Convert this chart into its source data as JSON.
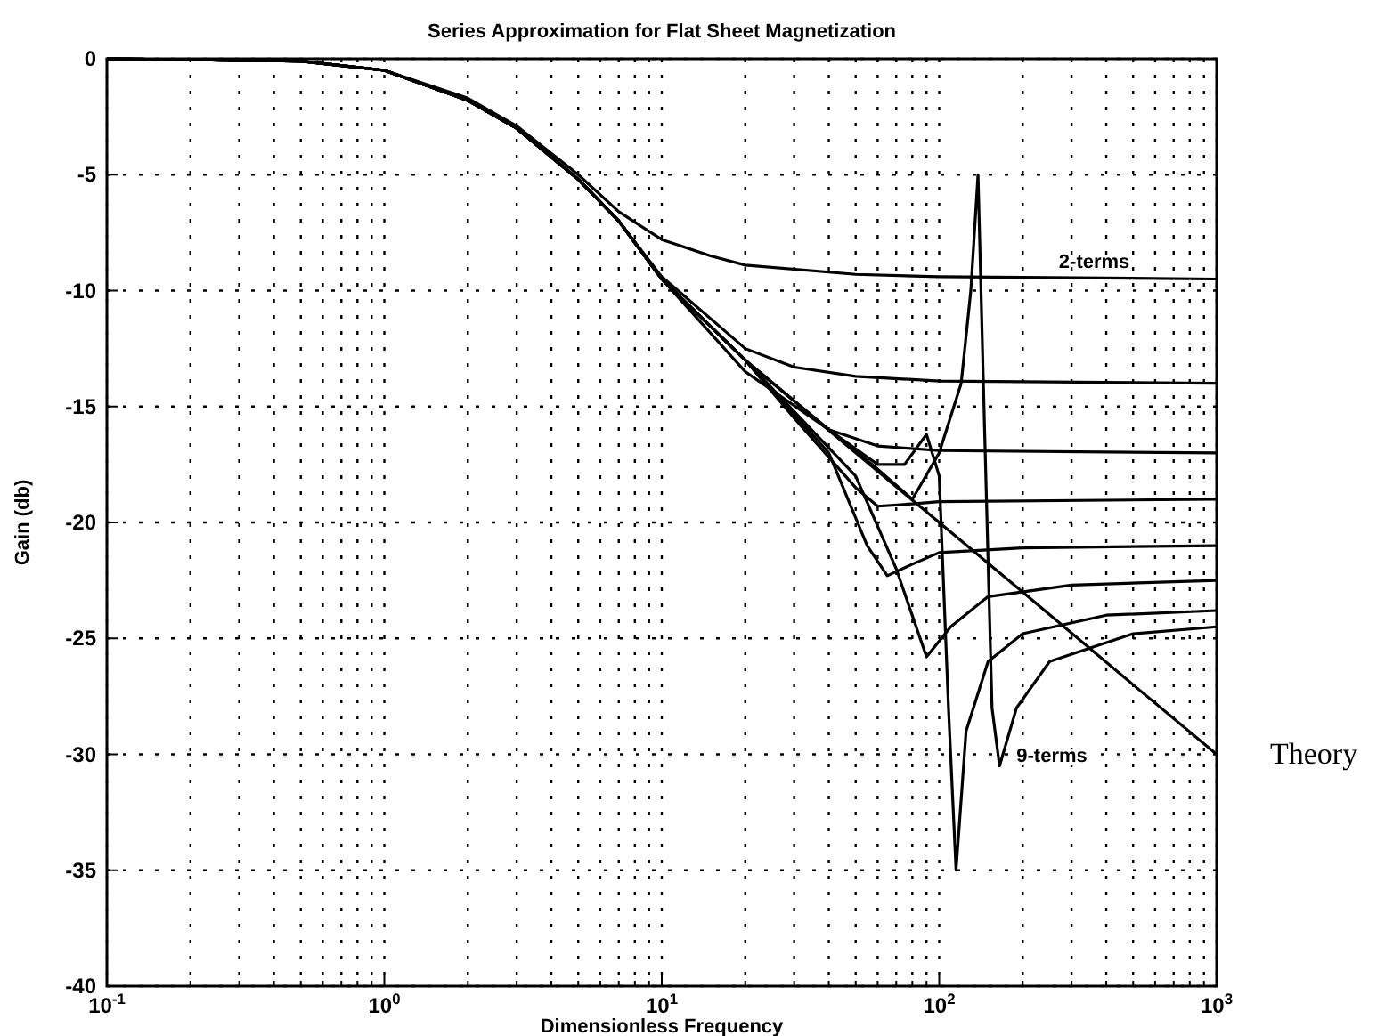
{
  "chart_data": {
    "type": "line",
    "title": "Series Approximation for Flat Sheet Magnetization",
    "xlabel": "Dimensionless Frequency",
    "ylabel": "Gain (db)",
    "log": "x",
    "xlim": [
      0.1,
      1000
    ],
    "xticks": [
      {
        "value": 0.1,
        "label": "10$^{-1}$"
      },
      {
        "value": 0.2,
        "label": null
      },
      {
        "value": 0.3,
        "label": null
      },
      {
        "value": 0.4,
        "label": null
      },
      {
        "value": 0.5,
        "label": null
      },
      {
        "value": 0.6,
        "label": null
      },
      {
        "value": 0.7,
        "label": null
      },
      {
        "value": 0.8,
        "label": null
      },
      {
        "value": 0.9,
        "label": null
      },
      {
        "value": 1,
        "label": "10$^{0}$"
      },
      {
        "value": 2,
        "label": null
      },
      {
        "value": 3,
        "label": null
      },
      {
        "value": 4,
        "label": null
      },
      {
        "value": 5,
        "label": null
      },
      {
        "value": 6,
        "label": null
      },
      {
        "value": 7,
        "label": null
      },
      {
        "value": 8,
        "label": null
      },
      {
        "value": 9,
        "label": null
      },
      {
        "value": 10,
        "label": "10$^{1}$"
      },
      {
        "value": 20,
        "label": null
      },
      {
        "value": 30,
        "label": null
      },
      {
        "value": 40,
        "label": null
      },
      {
        "value": 50,
        "label": null
      },
      {
        "value": 60,
        "label": null
      },
      {
        "value": 70,
        "label": null
      },
      {
        "value": 80,
        "label": null
      },
      {
        "value": 90,
        "label": null
      },
      {
        "value": 100,
        "label": "10$^{2}$"
      },
      {
        "value": 200,
        "label": null
      },
      {
        "value": 300,
        "label": null
      },
      {
        "value": 400,
        "label": null
      },
      {
        "value": 500,
        "label": null
      },
      {
        "value": 600,
        "label": null
      },
      {
        "value": 700,
        "label": null
      },
      {
        "value": 800,
        "label": null
      },
      {
        "value": 900,
        "label": null
      },
      {
        "value": 1000,
        "label": "10$^{3}$"
      }
    ],
    "ylim": [
      -40,
      0
    ],
    "yticks": [
      -40,
      -35,
      -30,
      -25,
      -20,
      -15,
      -10,
      -5,
      0
    ],
    "grid": true,
    "line_style": "solid",
    "series": [
      {
        "name": "Theory",
        "color": "#000000",
        "x": [
          0.1,
          0.5,
          1,
          2,
          3,
          5,
          7,
          10,
          20,
          50,
          100,
          200,
          500,
          1000
        ],
        "values": [
          0,
          -0.1,
          -0.5,
          -1.8,
          -3,
          -5.2,
          -7,
          -9.5,
          -13,
          -17,
          -20,
          -23,
          -27,
          -30
        ]
      },
      {
        "name": "2-terms",
        "color": "#000000",
        "x": [
          0.1,
          0.5,
          1,
          2,
          3,
          5,
          7,
          10,
          15,
          20,
          50,
          100,
          1000
        ],
        "values": [
          0,
          -0.1,
          -0.5,
          -1.7,
          -2.9,
          -5,
          -6.6,
          -7.8,
          -8.5,
          -8.9,
          -9.3,
          -9.4,
          -9.5
        ]
      },
      {
        "color": "#000000",
        "x": [
          0.1,
          0.5,
          1,
          2,
          3,
          5,
          7,
          10,
          20,
          30,
          50,
          100,
          1000
        ],
        "values": [
          0,
          -0.1,
          -0.5,
          -1.8,
          -3,
          -5.2,
          -7,
          -9.4,
          -12.5,
          -13.3,
          -13.7,
          -13.9,
          -14
        ]
      },
      {
        "color": "#000000",
        "x": [
          0.1,
          0.5,
          1,
          2,
          3,
          5,
          7,
          10,
          20,
          40,
          60,
          100,
          1000
        ],
        "values": [
          0,
          -0.1,
          -0.5,
          -1.8,
          -3,
          -5.2,
          -7,
          -9.5,
          -13.5,
          -16,
          -16.7,
          -16.9,
          -17
        ]
      },
      {
        "color": "#000000",
        "x": [
          0.1,
          0.5,
          1,
          2,
          3,
          5,
          7,
          10,
          20,
          30,
          50,
          60,
          80,
          100,
          1000
        ],
        "values": [
          0,
          -0.1,
          -0.5,
          -1.8,
          -3,
          -5.2,
          -7,
          -9.5,
          -13,
          -15.5,
          -18.5,
          -19.3,
          -19.2,
          -19.1,
          -19
        ]
      },
      {
        "color": "#000000",
        "x": [
          0.1,
          0.5,
          1,
          2,
          3,
          5,
          7,
          10,
          20,
          40,
          55,
          65,
          80,
          100,
          200,
          1000
        ],
        "values": [
          0,
          -0.1,
          -0.5,
          -1.8,
          -3,
          -5.2,
          -7,
          -9.5,
          -13,
          -17,
          -21,
          -22.3,
          -21.8,
          -21.3,
          -21.1,
          -21
        ]
      },
      {
        "color": "#000000",
        "x": [
          0.1,
          0.5,
          1,
          2,
          3,
          5,
          7,
          10,
          20,
          50,
          70,
          90,
          110,
          150,
          300,
          1000
        ],
        "values": [
          0,
          -0.1,
          -0.5,
          -1.8,
          -3,
          -5.2,
          -7,
          -9.5,
          -13,
          -18,
          -22,
          -25.8,
          -24.5,
          -23.2,
          -22.7,
          -22.5
        ]
      },
      {
        "color": "#000000",
        "x": [
          0.1,
          0.5,
          1,
          2,
          3,
          5,
          7,
          10,
          20,
          40,
          60,
          75,
          90,
          100,
          108,
          115,
          125,
          150,
          200,
          400,
          1000
        ],
        "values": [
          0,
          -0.1,
          -0.5,
          -1.8,
          -3,
          -5.2,
          -7,
          -9.5,
          -13,
          -16,
          -17.5,
          -17.5,
          -16.2,
          -18,
          -28,
          -35,
          -29,
          -26,
          -24.8,
          -24,
          -23.8
        ]
      },
      {
        "name": "9-terms",
        "color": "#000000",
        "x": [
          0.1,
          0.5,
          1,
          2,
          3,
          5,
          7,
          10,
          20,
          40,
          60,
          80,
          100,
          120,
          130,
          138,
          145,
          155,
          165,
          190,
          250,
          500,
          1000
        ],
        "values": [
          0,
          -0.1,
          -0.5,
          -1.8,
          -3,
          -5.2,
          -7,
          -9.5,
          -13,
          -16,
          -17.7,
          -19,
          -17,
          -14,
          -10,
          -5,
          -15,
          -28,
          -30.5,
          -28,
          -26,
          -24.8,
          -24.5
        ]
      }
    ]
  }
}
